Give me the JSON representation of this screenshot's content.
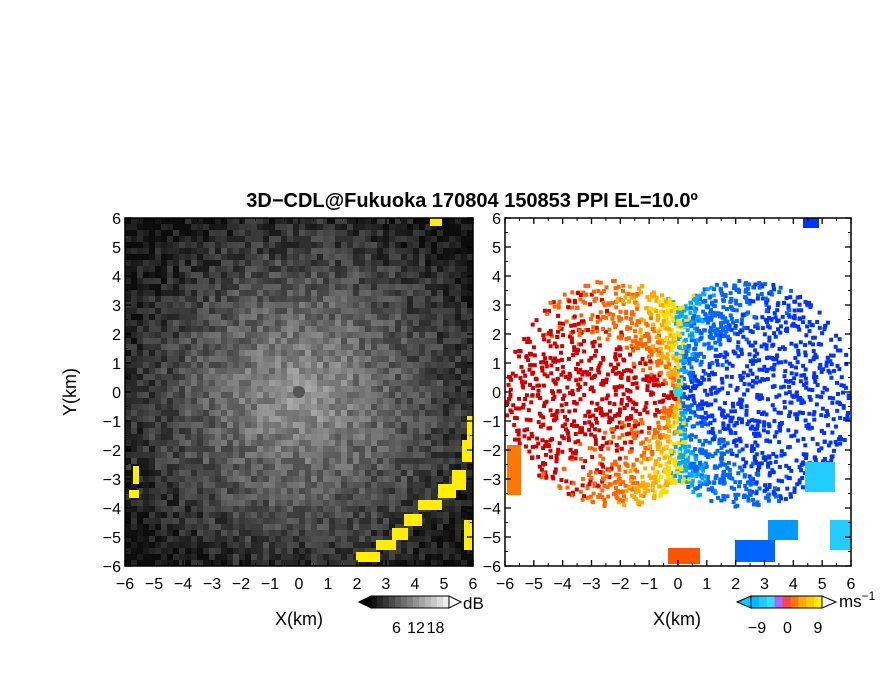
{
  "title": "3D−CDL@Fukuoka 170804 150853 PPI EL=10.0º",
  "chart_data": [
    {
      "type": "heatmap",
      "panel": "reflectivity (left)",
      "xlabel": "X(km)",
      "ylabel": "Y(km)",
      "xlim": [
        -6,
        6
      ],
      "ylim": [
        -6,
        6
      ],
      "xticks": [
        "−6",
        "−5",
        "−4",
        "−3",
        "−2",
        "−1",
        "0",
        "1",
        "2",
        "3",
        "4",
        "5",
        "6"
      ],
      "yticks": [
        "−6",
        "−5",
        "−4",
        "−3",
        "−2",
        "−1",
        "0",
        "1",
        "2",
        "3",
        "4",
        "5",
        "6"
      ],
      "colorbar": {
        "label": "dB",
        "ticks": [
          "6",
          "12",
          "18"
        ],
        "values": [
          6,
          12,
          18
        ]
      },
      "colors": {
        "low": "#111111",
        "high": "#d8d8d8",
        "saturated": "#ffee00"
      }
    },
    {
      "type": "heatmap",
      "panel": "Doppler velocity (right)",
      "xlabel": "X(km)",
      "ylabel": "",
      "xlim": [
        -6,
        6
      ],
      "ylim": [
        -6,
        6
      ],
      "xticks": [
        "−6",
        "−5",
        "−4",
        "−3",
        "−2",
        "−1",
        "0",
        "1",
        "2",
        "3",
        "4",
        "5",
        "6"
      ],
      "yticks": [
        "−6",
        "−5",
        "−4",
        "−3",
        "−2",
        "−1",
        "0",
        "1",
        "2",
        "3",
        "4",
        "5",
        "6"
      ],
      "colorbar": {
        "label": "ms",
        "label_superscript": "−1",
        "ticks": [
          "−9",
          "0",
          "9"
        ],
        "values": [
          -9,
          0,
          9
        ]
      },
      "colors": {
        "negative": "#0033ff",
        "mid_negative": "#00aaff",
        "zero": "#ffee00",
        "positive": "#ff6600",
        "extreme_positive": "#cc0000"
      }
    }
  ]
}
